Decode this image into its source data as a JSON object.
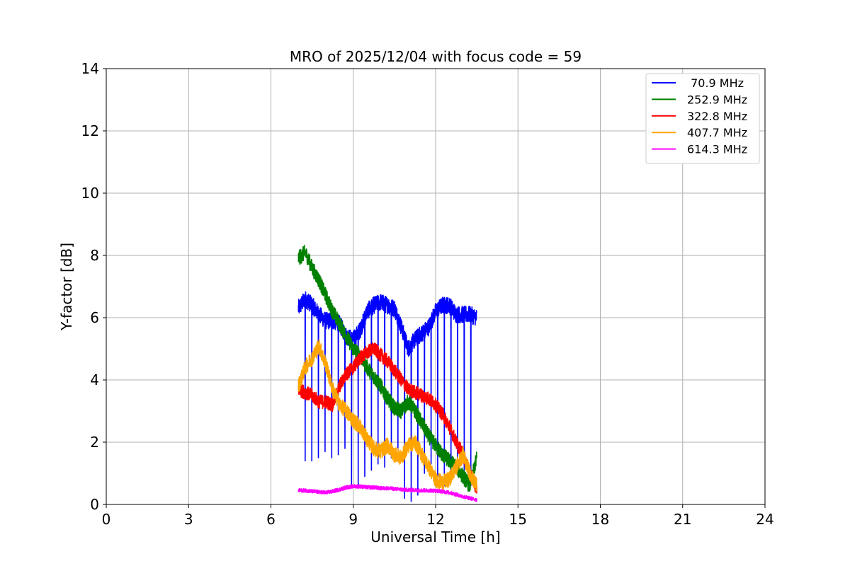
{
  "chart_data": {
    "type": "line",
    "title": "MRO of 2025/12/04 with focus code = 59",
    "xlabel": "Universal Time [h]",
    "ylabel": "Y-factor [dB]",
    "xlim": [
      0,
      24
    ],
    "ylim": [
      0,
      14
    ],
    "xticks": [
      0,
      3,
      6,
      9,
      12,
      15,
      18,
      21,
      24
    ],
    "yticks": [
      0,
      2,
      4,
      6,
      8,
      10,
      12,
      14
    ],
    "grid": true,
    "legend_position": "top-right",
    "series": [
      {
        "name": " 70.9 MHz",
        "color": "#0000ff",
        "x": [
          7.0,
          7.25,
          7.5,
          7.75,
          8.0,
          8.25,
          8.5,
          8.75,
          9.0,
          9.25,
          9.5,
          9.75,
          10.0,
          10.25,
          10.5,
          10.75,
          11.0,
          11.25,
          11.5,
          11.75,
          12.0,
          12.25,
          12.5,
          12.75,
          13.0,
          13.25,
          13.5
        ],
        "values": [
          6.3,
          6.6,
          6.4,
          6.1,
          5.9,
          5.9,
          5.8,
          5.4,
          5.3,
          5.6,
          6.2,
          6.4,
          6.5,
          6.4,
          6.3,
          5.7,
          5.0,
          5.3,
          5.5,
          5.7,
          6.2,
          6.4,
          6.4,
          6.1,
          6.1,
          6.1,
          6.0
        ],
        "notch_dips": [
          1.4,
          1.4,
          1.5,
          1.7,
          1.5,
          1.6,
          1.8,
          0.6,
          0.6,
          0.9,
          1.1,
          1.3,
          1.2,
          1.5,
          1.4,
          0.2,
          0.1,
          0.3,
          1.0,
          1.3,
          0.9,
          0.6,
          1.1,
          1.3,
          0.7,
          0.6,
          1.3
        ]
      },
      {
        "name": "252.9 MHz",
        "color": "#008000",
        "x": [
          7.0,
          7.25,
          7.5,
          7.75,
          8.0,
          8.25,
          8.5,
          8.75,
          9.0,
          9.25,
          9.5,
          9.75,
          10.0,
          10.25,
          10.5,
          10.75,
          11.0,
          11.25,
          11.5,
          11.75,
          12.0,
          12.25,
          12.5,
          12.75,
          13.0,
          13.25,
          13.5
        ],
        "values": [
          7.9,
          8.1,
          7.6,
          7.2,
          6.7,
          6.2,
          5.8,
          5.4,
          5.0,
          4.8,
          4.4,
          4.1,
          3.8,
          3.4,
          3.1,
          3.0,
          3.3,
          3.0,
          2.6,
          2.2,
          1.9,
          1.6,
          1.4,
          1.2,
          0.9,
          0.6,
          1.5
        ]
      },
      {
        "name": "322.8 MHz",
        "color": "#ff0000",
        "x": [
          7.0,
          7.25,
          7.5,
          7.75,
          8.0,
          8.25,
          8.5,
          8.75,
          9.0,
          9.25,
          9.5,
          9.75,
          10.0,
          10.25,
          10.5,
          10.75,
          11.0,
          11.25,
          11.5,
          11.75,
          12.0,
          12.25,
          12.5,
          12.75,
          13.0,
          13.25,
          13.5
        ],
        "values": [
          3.7,
          3.6,
          3.5,
          3.3,
          3.3,
          3.2,
          3.8,
          4.2,
          4.4,
          4.7,
          4.9,
          5.0,
          4.8,
          4.6,
          4.3,
          4.0,
          3.7,
          3.6,
          3.5,
          3.4,
          3.2,
          2.9,
          2.5,
          2.0,
          1.6,
          1.0,
          0.5
        ]
      },
      {
        "name": "407.7 MHz",
        "color": "#ffa500",
        "x": [
          7.0,
          7.25,
          7.5,
          7.75,
          8.0,
          8.25,
          8.5,
          8.75,
          9.0,
          9.25,
          9.5,
          9.75,
          10.0,
          10.25,
          10.5,
          10.75,
          11.0,
          11.25,
          11.5,
          11.75,
          12.0,
          12.25,
          12.5,
          12.75,
          13.0,
          13.25,
          13.5
        ],
        "values": [
          3.8,
          4.4,
          4.7,
          5.1,
          4.5,
          3.7,
          3.2,
          3.0,
          2.7,
          2.5,
          2.1,
          1.8,
          1.7,
          1.9,
          1.6,
          1.5,
          1.9,
          2.0,
          1.6,
          1.2,
          0.8,
          0.7,
          0.8,
          1.2,
          1.6,
          1.0,
          0.6
        ]
      },
      {
        "name": "614.3 MHz",
        "color": "#ff00ff",
        "x": [
          7.0,
          7.25,
          7.5,
          7.75,
          8.0,
          8.25,
          8.5,
          8.75,
          9.0,
          9.25,
          9.5,
          9.75,
          10.0,
          10.25,
          10.5,
          10.75,
          11.0,
          11.25,
          11.5,
          11.75,
          12.0,
          12.25,
          12.5,
          12.75,
          13.0,
          13.25,
          13.5
        ],
        "values": [
          0.45,
          0.45,
          0.42,
          0.4,
          0.38,
          0.42,
          0.48,
          0.55,
          0.58,
          0.58,
          0.55,
          0.55,
          0.52,
          0.52,
          0.5,
          0.48,
          0.47,
          0.46,
          0.45,
          0.45,
          0.44,
          0.42,
          0.38,
          0.32,
          0.25,
          0.2,
          0.15
        ]
      }
    ]
  }
}
